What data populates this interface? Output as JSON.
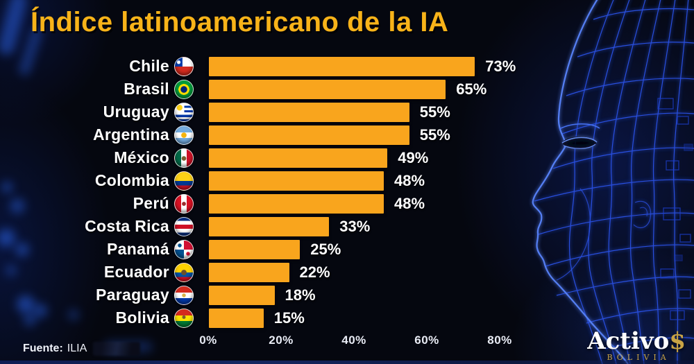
{
  "title": "Índice latinoamericano de la IA",
  "source": {
    "prefix": "Fuente:",
    "name": "ILIA"
  },
  "logo": {
    "word": "Activo",
    "dollar": "$",
    "sub": "BOLIVIA"
  },
  "colors": {
    "title_yellow": "#f8b319",
    "bar_orange": "#f9a51d",
    "background_dark": "#05070f",
    "wireframe_blue": "#2a52e8",
    "text_white": "#ffffff",
    "logo_gold": "#c9a445"
  },
  "icons": {
    "flags": [
      "chile-flag-icon",
      "brasil-flag-icon",
      "uruguay-flag-icon",
      "argentina-flag-icon",
      "mexico-flag-icon",
      "colombia-flag-icon",
      "peru-flag-icon",
      "costa-rica-flag-icon",
      "panama-flag-icon",
      "ecuador-flag-icon",
      "paraguay-flag-icon",
      "bolivia-flag-icon"
    ],
    "background_art": "wireframe-head"
  },
  "chart_data": {
    "type": "bar",
    "orientation": "horizontal",
    "title": "Índice latinoamericano de la IA",
    "categories": [
      "Chile",
      "Brasil",
      "Uruguay",
      "Argentina",
      "México",
      "Colombia",
      "Perú",
      "Costa Rica",
      "Panamá",
      "Ecuador",
      "Paraguay",
      "Bolivia"
    ],
    "values": [
      73,
      65,
      55,
      55,
      49,
      48,
      48,
      33,
      25,
      22,
      18,
      15
    ],
    "value_labels": [
      "73%",
      "65%",
      "55%",
      "55%",
      "49%",
      "48%",
      "48%",
      "33%",
      "25%",
      "22%",
      "18%",
      "15%"
    ],
    "x_ticks": [
      "0%",
      "20%",
      "40%",
      "60%",
      "80%"
    ],
    "tick_values": [
      0,
      20,
      40,
      60,
      80
    ],
    "xlim": [
      0,
      88
    ],
    "grid": false,
    "legend": false,
    "bar_color": "#f9a51d",
    "title_color": "#f8b319",
    "value_label_color": "#ffffff"
  }
}
